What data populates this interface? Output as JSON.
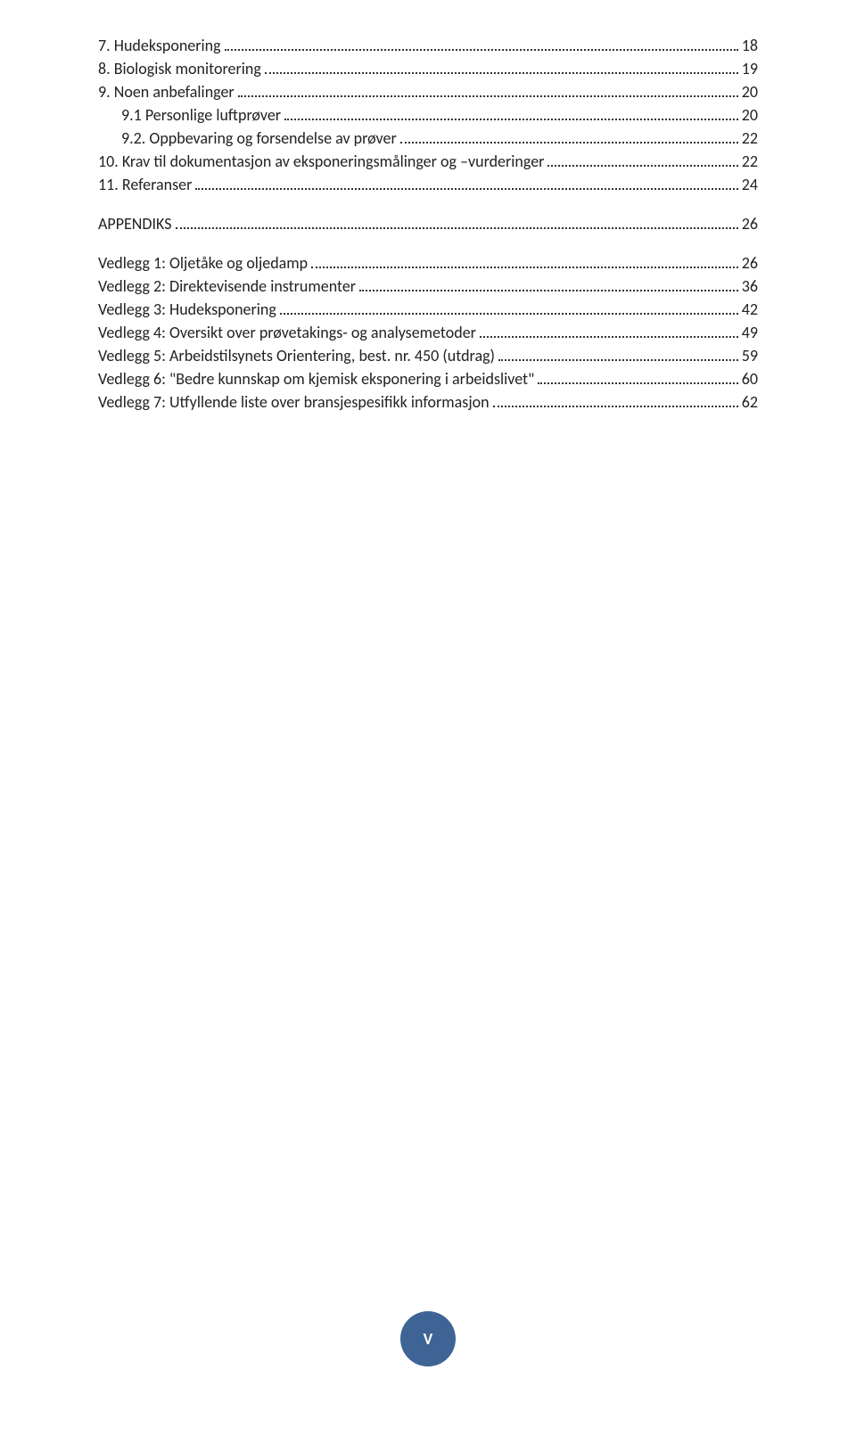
{
  "toc": {
    "entries": [
      {
        "label": "7. Hudeksponering",
        "page": "18",
        "level": "level-0",
        "spaced": false
      },
      {
        "label": "8. Biologisk monitorering",
        "page": "19",
        "level": "level-0",
        "spaced": false
      },
      {
        "label": "9. Noen anbefalinger",
        "page": "20",
        "level": "level-0",
        "spaced": false
      },
      {
        "label": "9.1 Personlige luftprøver",
        "page": "20",
        "level": "level-1",
        "spaced": false
      },
      {
        "label": "9.2. Oppbevaring og forsendelse av prøver",
        "page": "22",
        "level": "level-1",
        "spaced": false
      },
      {
        "label": "10. Krav til dokumentasjon av eksponeringsmålinger og –vurderinger",
        "page": "22",
        "level": "level-0",
        "spaced": false
      },
      {
        "label": "11. Referanser",
        "page": "24",
        "level": "level-0",
        "spaced": false
      },
      {
        "label": "APPENDIKS",
        "page": "26",
        "level": "level-appendix",
        "spaced": true
      },
      {
        "label": "Vedlegg 1: Oljetåke og oljedamp",
        "page": "26",
        "level": "level-vedlegg",
        "spaced": true
      },
      {
        "label": "Vedlegg 2: Direktevisende instrumenter",
        "page": "36",
        "level": "level-vedlegg",
        "spaced": false
      },
      {
        "label": "Vedlegg 3: Hudeksponering",
        "page": "42",
        "level": "level-vedlegg",
        "spaced": false
      },
      {
        "label": "Vedlegg 4: Oversikt over prøvetakings- og analysemetoder",
        "page": "49",
        "level": "level-vedlegg",
        "spaced": false
      },
      {
        "label": "Vedlegg 5: Arbeidstilsynets Orientering, best. nr. 450 (utdrag)",
        "page": "59",
        "level": "level-vedlegg",
        "spaced": false
      },
      {
        "label": "Vedlegg 6: \"Bedre kunnskap om kjemisk eksponering i arbeidslivet\"",
        "page": "60",
        "level": "level-vedlegg",
        "spaced": false
      },
      {
        "label": "Vedlegg 7: Utfyllende liste over bransjespesifikk informasjon",
        "page": "62",
        "level": "level-vedlegg",
        "spaced": false
      }
    ]
  },
  "badge": {
    "text": "V",
    "bg_color": "#3d6494",
    "text_color": "#ffffff"
  },
  "colors": {
    "dot_color": "#333333",
    "text_color": "#222222",
    "background": "#ffffff"
  },
  "typography": {
    "font_family": "Calibri",
    "font_size_pt": 11
  }
}
